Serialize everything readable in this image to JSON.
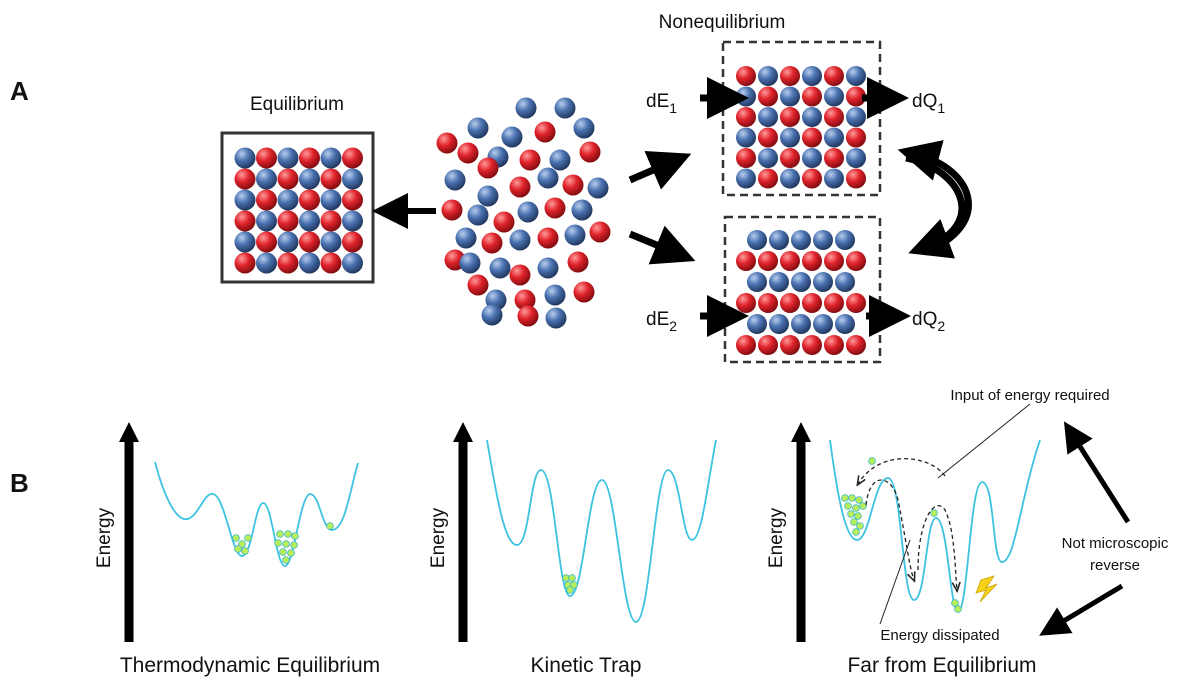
{
  "panel_a": {
    "label": "A",
    "equilibrium": "Equilibrium",
    "nonequilibrium": "Nonequilibrium",
    "flows": {
      "dE1": {
        "base": "dE",
        "sub": "1"
      },
      "dQ1": {
        "base": "dQ",
        "sub": "1"
      },
      "dE2": {
        "base": "dE",
        "sub": "2"
      },
      "dQ2": {
        "base": "dQ",
        "sub": "2"
      }
    }
  },
  "panel_b": {
    "label": "B",
    "axis_labels": [
      "Energy",
      "Energy",
      "Energy"
    ],
    "titles": [
      "Thermodynamic Equilibrium",
      "Kinetic Trap",
      "Far from Equilibrium"
    ],
    "annotations": {
      "input": "Input of energy required",
      "dissipated": "Energy dissipated",
      "reverse": [
        "Not microscopic",
        "reverse"
      ]
    }
  }
}
